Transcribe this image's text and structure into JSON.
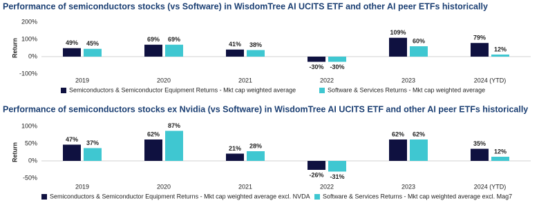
{
  "chart_data": [
    {
      "type": "bar",
      "title": "Performance of semiconductors stocks (vs Software) in WisdomTree AI UCITS ETF and other AI peer ETFs historically",
      "y_label": "Return",
      "categories": [
        "2019",
        "2020",
        "2021",
        "2022",
        "2023",
        "2024 (YTD)"
      ],
      "series": [
        {
          "name": "Semiconductors & Semiconductor Equipment Returns - Mkt cap weighted average",
          "color": "#0f1140",
          "values": [
            49,
            69,
            41,
            -30,
            109,
            79
          ],
          "value_labels": [
            "49%",
            "69%",
            "41%",
            "-30%",
            "109%",
            "79%"
          ]
        },
        {
          "name": "Software & Services Returns - Mkt cap weighted average",
          "color": "#3fc7d1",
          "values": [
            45,
            69,
            38,
            -30,
            60,
            12
          ],
          "value_labels": [
            "45%",
            "69%",
            "38%",
            "-30%",
            "60%",
            "12%"
          ]
        }
      ],
      "ylim": [
        -100,
        200
      ],
      "yticks": [
        {
          "value": 200,
          "label": "200%"
        },
        {
          "value": 100,
          "label": "100%"
        },
        {
          "value": 0,
          "label": "0%"
        },
        {
          "value": -100,
          "label": "-100%"
        }
      ]
    },
    {
      "type": "bar",
      "title": "Performance of semiconductors stocks ex Nvidia (vs Software) in WisdomTree AI UCITS ETF and other AI peer ETFs historically",
      "y_label": "Return",
      "categories": [
        "2019",
        "2020",
        "2021",
        "2022",
        "2023",
        "2024 (YTD)"
      ],
      "series": [
        {
          "name": "Semiconductors & Semiconductor Equipment Returns - Mkt cap weighted average excl. NVDA",
          "color": "#0f1140",
          "values": [
            47,
            62,
            21,
            -26,
            62,
            35
          ],
          "value_labels": [
            "47%",
            "62%",
            "21%",
            "-26%",
            "62%",
            "35%"
          ]
        },
        {
          "name": "Software & Services Returns - Mkt cap weighted average excl. Mag7",
          "color": "#3fc7d1",
          "values": [
            37,
            87,
            28,
            -31,
            62,
            12
          ],
          "value_labels": [
            "37%",
            "87%",
            "28%",
            "-31%",
            "62%",
            "12%"
          ]
        }
      ],
      "ylim": [
        -50,
        100
      ],
      "yticks": [
        {
          "value": 100,
          "label": "100%"
        },
        {
          "value": 50,
          "label": "50%"
        },
        {
          "value": 0,
          "label": "0%"
        },
        {
          "value": -50,
          "label": "-50%"
        }
      ]
    }
  ]
}
